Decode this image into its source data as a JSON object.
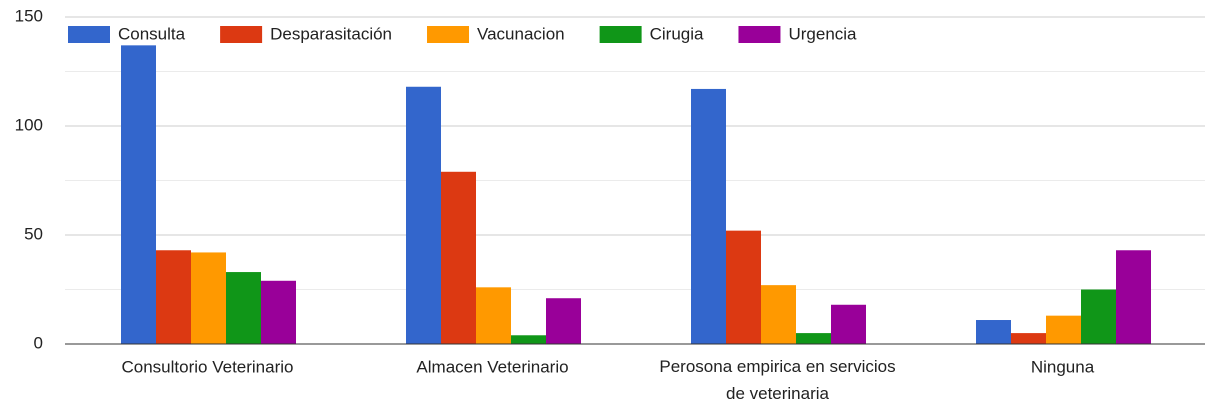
{
  "chart_data": {
    "type": "bar",
    "categories": [
      "Consultorio Veterinario",
      "Almacen Veterinario",
      "Perosona empirica en servicios de veterinaria",
      "Ninguna"
    ],
    "series": [
      {
        "name": "Consulta",
        "color": "#3366cc",
        "values": [
          137,
          118,
          117,
          11
        ]
      },
      {
        "name": "Desparasitación",
        "color": "#dc3912",
        "values": [
          43,
          79,
          52,
          5
        ]
      },
      {
        "name": "Vacunacion",
        "color": "#ff9900",
        "values": [
          42,
          26,
          27,
          13
        ]
      },
      {
        "name": "Cirugia",
        "color": "#109618",
        "values": [
          33,
          4,
          5,
          25
        ]
      },
      {
        "name": "Urgencia",
        "color": "#990099",
        "values": [
          29,
          21,
          18,
          43
        ]
      }
    ],
    "ylim": [
      0,
      150
    ],
    "yticks": [
      0,
      50,
      100,
      150
    ],
    "minor_yticks": [
      25,
      75,
      125
    ],
    "grid": true,
    "legend": "top"
  }
}
